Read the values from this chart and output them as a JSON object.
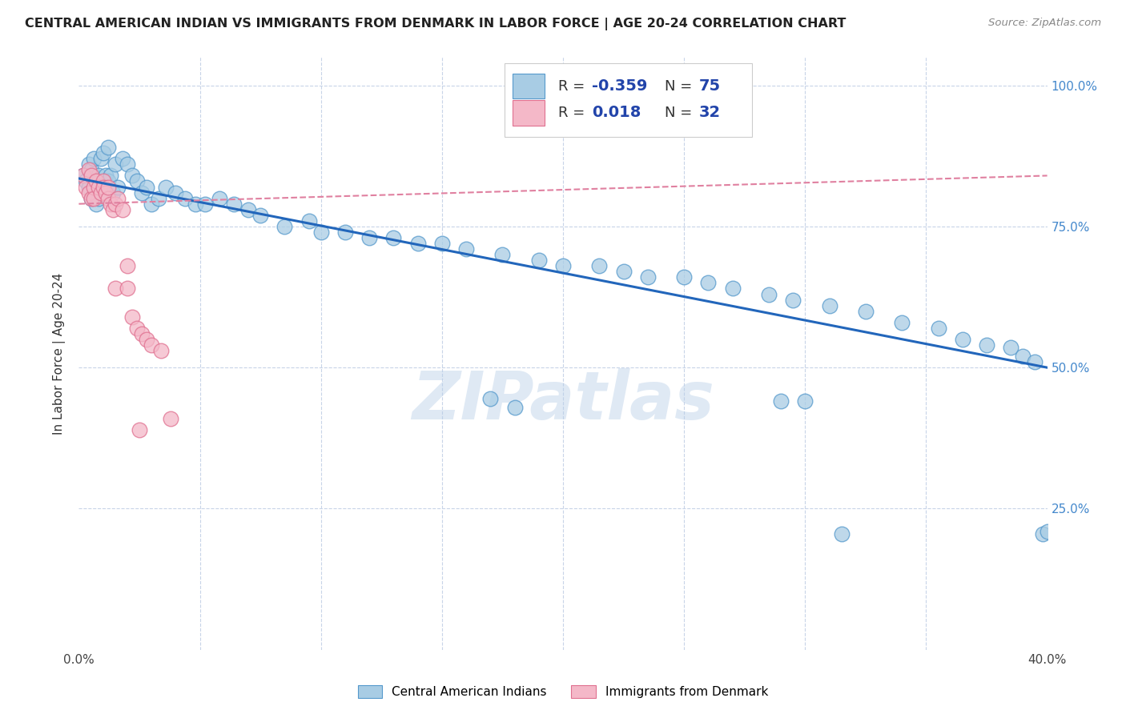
{
  "title": "CENTRAL AMERICAN INDIAN VS IMMIGRANTS FROM DENMARK IN LABOR FORCE | AGE 20-24 CORRELATION CHART",
  "source": "Source: ZipAtlas.com",
  "ylabel": "In Labor Force | Age 20-24",
  "xmin": 0.0,
  "xmax": 0.4,
  "ymin": 0.0,
  "ymax": 1.05,
  "r_blue": -0.359,
  "n_blue": 75,
  "r_pink": 0.018,
  "n_pink": 32,
  "watermark": "ZIPatlas",
  "blue_fill": "#a8cce4",
  "blue_edge": "#5599cc",
  "pink_fill": "#f4b8c8",
  "pink_edge": "#e07090",
  "blue_line_color": "#2266bb",
  "pink_line_color": "#e080a0",
  "background_color": "#ffffff",
  "grid_color": "#c8d4e8",
  "title_color": "#222222",
  "source_color": "#888888",
  "right_axis_color": "#4488cc",
  "legend_r_color": "#2244aa",
  "legend_n_color": "#2244aa",
  "blue_x": [
    0.002,
    0.003,
    0.004,
    0.004,
    0.005,
    0.005,
    0.006,
    0.006,
    0.007,
    0.007,
    0.008,
    0.008,
    0.009,
    0.01,
    0.01,
    0.011,
    0.012,
    0.012,
    0.013,
    0.014,
    0.015,
    0.016,
    0.018,
    0.02,
    0.022,
    0.024,
    0.026,
    0.028,
    0.03,
    0.033,
    0.036,
    0.04,
    0.044,
    0.048,
    0.052,
    0.058,
    0.064,
    0.07,
    0.075,
    0.085,
    0.095,
    0.1,
    0.11,
    0.12,
    0.13,
    0.14,
    0.15,
    0.16,
    0.175,
    0.19,
    0.2,
    0.215,
    0.225,
    0.235,
    0.25,
    0.26,
    0.27,
    0.285,
    0.295,
    0.31,
    0.325,
    0.34,
    0.355,
    0.365,
    0.375,
    0.385,
    0.39,
    0.395,
    0.398,
    0.4,
    0.17,
    0.18,
    0.29,
    0.3,
    0.315
  ],
  "blue_y": [
    0.84,
    0.83,
    0.82,
    0.86,
    0.8,
    0.85,
    0.81,
    0.87,
    0.82,
    0.79,
    0.84,
    0.8,
    0.87,
    0.82,
    0.88,
    0.84,
    0.83,
    0.89,
    0.84,
    0.81,
    0.86,
    0.82,
    0.87,
    0.86,
    0.84,
    0.83,
    0.81,
    0.82,
    0.79,
    0.8,
    0.82,
    0.81,
    0.8,
    0.79,
    0.79,
    0.8,
    0.79,
    0.78,
    0.77,
    0.75,
    0.76,
    0.74,
    0.74,
    0.73,
    0.73,
    0.72,
    0.72,
    0.71,
    0.7,
    0.69,
    0.68,
    0.68,
    0.67,
    0.66,
    0.66,
    0.65,
    0.64,
    0.63,
    0.62,
    0.61,
    0.6,
    0.58,
    0.57,
    0.55,
    0.54,
    0.535,
    0.52,
    0.51,
    0.205,
    0.21,
    0.445,
    0.43,
    0.44,
    0.44,
    0.205
  ],
  "pink_x": [
    0.002,
    0.003,
    0.004,
    0.004,
    0.005,
    0.005,
    0.006,
    0.006,
    0.007,
    0.008,
    0.009,
    0.01,
    0.01,
    0.011,
    0.012,
    0.012,
    0.013,
    0.014,
    0.015,
    0.016,
    0.018,
    0.02,
    0.022,
    0.024,
    0.026,
    0.028,
    0.03,
    0.034,
    0.038,
    0.015,
    0.02,
    0.025
  ],
  "pink_y": [
    0.84,
    0.82,
    0.81,
    0.85,
    0.8,
    0.84,
    0.82,
    0.8,
    0.83,
    0.82,
    0.81,
    0.83,
    0.82,
    0.81,
    0.8,
    0.82,
    0.79,
    0.78,
    0.79,
    0.8,
    0.78,
    0.68,
    0.59,
    0.57,
    0.56,
    0.55,
    0.54,
    0.53,
    0.41,
    0.64,
    0.64,
    0.39
  ],
  "blue_line_y0": 0.835,
  "blue_line_y1": 0.5,
  "pink_line_y0": 0.79,
  "pink_line_y1": 0.84
}
